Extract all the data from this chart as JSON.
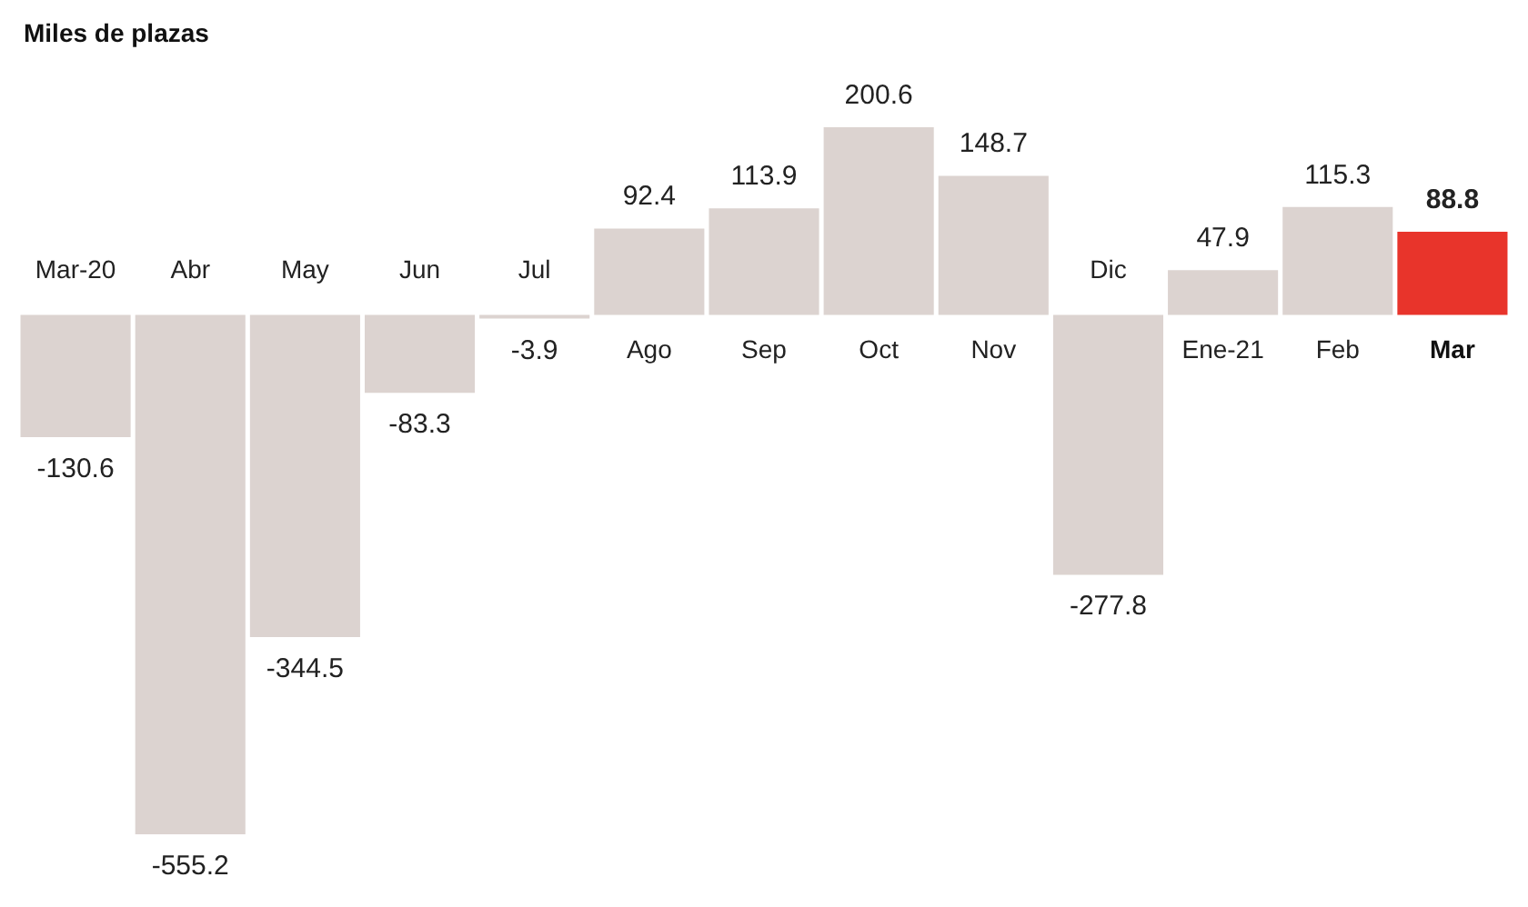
{
  "chart_data": {
    "type": "bar",
    "title": "Miles de plazas",
    "categories": [
      "Mar-20",
      "Abr",
      "May",
      "Jun",
      "Jul",
      "Ago",
      "Sep",
      "Oct",
      "Nov",
      "Dic",
      "Ene-21",
      "Feb",
      "Mar"
    ],
    "values": [
      -130.6,
      -555.2,
      -344.5,
      -83.3,
      -3.9,
      92.4,
      113.9,
      200.6,
      148.7,
      -277.8,
      47.9,
      115.3,
      88.8
    ],
    "colors": [
      "#dcd3d0",
      "#dcd3d0",
      "#dcd3d0",
      "#dcd3d0",
      "#dcd3d0",
      "#dcd3d0",
      "#dcd3d0",
      "#dcd3d0",
      "#dcd3d0",
      "#dcd3d0",
      "#dcd3d0",
      "#dcd3d0",
      "#e8342b"
    ],
    "data_labels": true
  }
}
